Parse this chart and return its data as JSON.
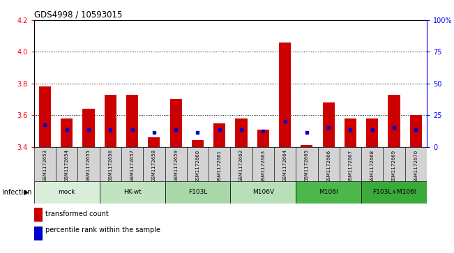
{
  "title": "GDS4998 / 10593015",
  "samples": [
    "GSM1172653",
    "GSM1172654",
    "GSM1172655",
    "GSM1172656",
    "GSM1172657",
    "GSM1172658",
    "GSM1172659",
    "GSM1172660",
    "GSM1172661",
    "GSM1172662",
    "GSM1172663",
    "GSM1172664",
    "GSM1172665",
    "GSM1172666",
    "GSM1172667",
    "GSM1172668",
    "GSM1172669",
    "GSM1172670"
  ],
  "bar_values": [
    3.78,
    3.58,
    3.64,
    3.73,
    3.73,
    3.46,
    3.7,
    3.44,
    3.55,
    3.58,
    3.51,
    4.06,
    3.41,
    3.68,
    3.58,
    3.58,
    3.73,
    3.6
  ],
  "blue_dot_values": [
    3.54,
    3.51,
    3.51,
    3.51,
    3.51,
    3.49,
    3.51,
    3.49,
    3.51,
    3.51,
    3.5,
    3.56,
    3.49,
    3.52,
    3.51,
    3.51,
    3.52,
    3.51
  ],
  "ylim": [
    3.4,
    4.2
  ],
  "yticks": [
    3.4,
    3.6,
    3.8,
    4.0,
    4.2
  ],
  "groups": [
    {
      "label": "mock",
      "indices": [
        0,
        1,
        2
      ],
      "color": "#d8eed8"
    },
    {
      "label": "HK-wt",
      "indices": [
        3,
        4,
        5
      ],
      "color": "#c0e4c0"
    },
    {
      "label": "F103L",
      "indices": [
        6,
        7,
        8
      ],
      "color": "#a8d8a8"
    },
    {
      "label": "M106V",
      "indices": [
        9,
        10,
        11
      ],
      "color": "#b8e0b8"
    },
    {
      "label": "M106I",
      "indices": [
        12,
        13,
        14
      ],
      "color": "#4cb84c"
    },
    {
      "label": "F103L+M106I",
      "indices": [
        15,
        16,
        17
      ],
      "color": "#3aaa3a"
    }
  ],
  "bar_color": "#cc0000",
  "dot_color": "#0000cc",
  "legend_transformed": "transformed count",
  "legend_percentile": "percentile rank within the sample",
  "right_ticks_pct": [
    0,
    25,
    50,
    75,
    100
  ],
  "right_labels": [
    "0",
    "25",
    "50",
    "75",
    "100%"
  ]
}
